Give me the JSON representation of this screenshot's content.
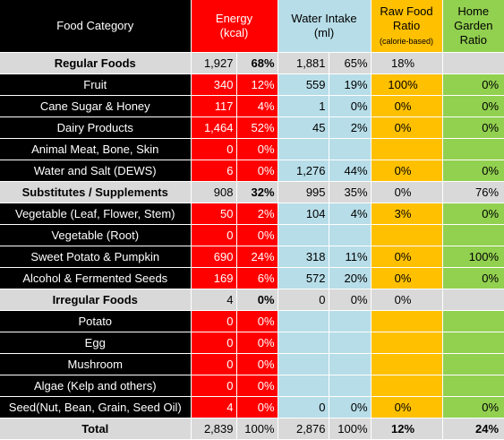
{
  "header": {
    "category": "Food Category",
    "energy_line1": "Energy",
    "energy_line2": "(kcal)",
    "water_line1": "Water Intake",
    "water_line2": "(ml)",
    "raw_line1": "Raw Food",
    "raw_line2": "Ratio",
    "raw_line3": "(calorie-based)",
    "garden_line1": "Home",
    "garden_line2": "Garden",
    "garden_line3": "Ratio"
  },
  "rows": [
    {
      "type": "section",
      "cat": "Regular Foods",
      "e": "1,927",
      "ep": "68%",
      "w": "1,881",
      "wp": "65%",
      "raw": "18%",
      "gar": ""
    },
    {
      "type": "item",
      "cat": "Fruit",
      "e": "340",
      "ep": "12%",
      "w": "559",
      "wp": "19%",
      "raw": "100%",
      "gar": "0%"
    },
    {
      "type": "item",
      "cat": "Cane Sugar & Honey",
      "e": "117",
      "ep": "4%",
      "w": "1",
      "wp": "0%",
      "raw": "0%",
      "gar": "0%"
    },
    {
      "type": "item",
      "cat": "Dairy Products",
      "e": "1,464",
      "ep": "52%",
      "w": "45",
      "wp": "2%",
      "raw": "0%",
      "gar": "0%"
    },
    {
      "type": "item",
      "cat": "Animal Meat, Bone, Skin",
      "e": "0",
      "ep": "0%",
      "w": "",
      "wp": "",
      "raw": "",
      "gar": ""
    },
    {
      "type": "item",
      "cat": "Water and Salt (DEWS)",
      "e": "6",
      "ep": "0%",
      "w": "1,276",
      "wp": "44%",
      "raw": "0%",
      "gar": "0%"
    },
    {
      "type": "section",
      "cat": "Substitutes / Supplements",
      "e": "908",
      "ep": "32%",
      "w": "995",
      "wp": "35%",
      "raw": "0%",
      "gar": "76%"
    },
    {
      "type": "item",
      "cat": "Vegetable (Leaf, Flower, Stem)",
      "e": "50",
      "ep": "2%",
      "w": "104",
      "wp": "4%",
      "raw": "3%",
      "gar": "0%"
    },
    {
      "type": "item",
      "cat": "Vegetable (Root)",
      "e": "0",
      "ep": "0%",
      "w": "",
      "wp": "",
      "raw": "",
      "gar": ""
    },
    {
      "type": "item",
      "cat": "Sweet Potato & Pumpkin",
      "e": "690",
      "ep": "24%",
      "w": "318",
      "wp": "11%",
      "raw": "0%",
      "gar": "100%"
    },
    {
      "type": "item",
      "cat": "Alcohol & Fermented Seeds",
      "e": "169",
      "ep": "6%",
      "w": "572",
      "wp": "20%",
      "raw": "0%",
      "gar": "0%"
    },
    {
      "type": "section",
      "cat": "Irregular Foods",
      "e": "4",
      "ep": "0%",
      "w": "0",
      "wp": "0%",
      "raw": "0%",
      "gar": ""
    },
    {
      "type": "item",
      "cat": "Potato",
      "e": "0",
      "ep": "0%",
      "w": "",
      "wp": "",
      "raw": "",
      "gar": ""
    },
    {
      "type": "item",
      "cat": "Egg",
      "e": "0",
      "ep": "0%",
      "w": "",
      "wp": "",
      "raw": "",
      "gar": ""
    },
    {
      "type": "item",
      "cat": "Mushroom",
      "e": "0",
      "ep": "0%",
      "w": "",
      "wp": "",
      "raw": "",
      "gar": ""
    },
    {
      "type": "item",
      "cat": "Algae (Kelp and others)",
      "e": "0",
      "ep": "0%",
      "w": "",
      "wp": "",
      "raw": "",
      "gar": ""
    },
    {
      "type": "item",
      "cat": "Seed(Nut, Bean, Grain, Seed Oil)",
      "e": "4",
      "ep": "0%",
      "w": "0",
      "wp": "0%",
      "raw": "0%",
      "gar": "0%"
    },
    {
      "type": "total",
      "cat": "Total",
      "e": "2,839",
      "ep": "100%",
      "w": "2,876",
      "wp": "100%",
      "raw": "12%",
      "gar": "24%"
    }
  ]
}
